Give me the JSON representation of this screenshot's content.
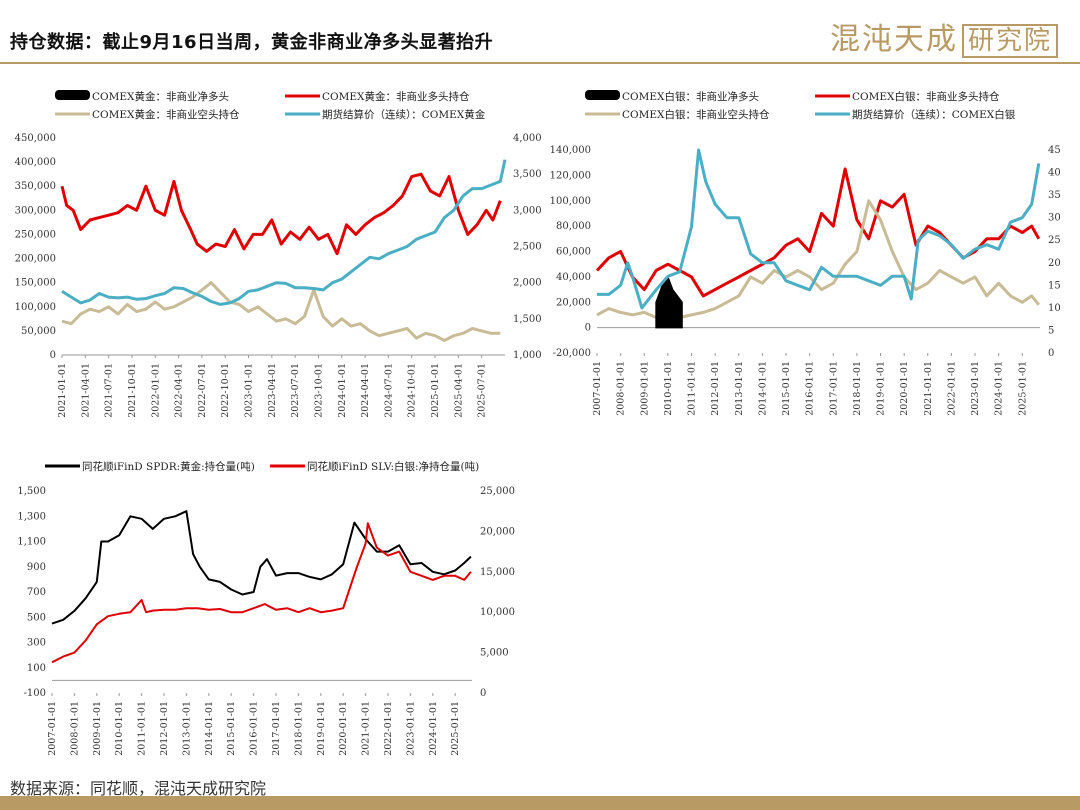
{
  "header": {
    "title": "持仓数据：截止9月16日当周，黄金非商业净多头显著抬升",
    "brand_main": "混沌天成",
    "brand_boxed": "研究院"
  },
  "source": "数据来源：同花顺，混沌天成研究院",
  "colors": {
    "black": "#000000",
    "red": "#e00000",
    "tan": "#c8bb95",
    "blue": "#4aaec4",
    "accent": "#b89a64"
  },
  "chart_data": [
    {
      "type": "line",
      "legend": [
        "COMEX黄金：非商业净多头",
        "COMEX黄金：非商业多头持仓",
        "COMEX黄金：非商业空头持仓",
        "期货结算价（连续）：COMEX黄金"
      ],
      "y_left": {
        "min": 0,
        "max": 450000,
        "ticks": [
          "0",
          "50,000",
          "100,000",
          "150,000",
          "200,000",
          "250,000",
          "300,000",
          "350,000",
          "400,000",
          "450,000"
        ]
      },
      "y_right": {
        "min": 1000,
        "max": 4000,
        "ticks": [
          "1,000",
          "1,500",
          "2,000",
          "2,500",
          "3,000",
          "3,500",
          "4,000"
        ]
      },
      "x_ticks": [
        "2021-01-01",
        "2021-04-01",
        "2021-07-01",
        "2021-10-01",
        "2022-01-01",
        "2022-04-01",
        "2022-07-01",
        "2022-10-01",
        "2023-01-01",
        "2023-04-01",
        "2023-07-01",
        "2023-10-01",
        "2024-01-01",
        "2024-04-01",
        "2024-07-01",
        "2024-10-01",
        "2025-01-01",
        "2025-04-01",
        "2025-07-01"
      ],
      "x_range": [
        2021.0,
        2025.75
      ],
      "series": [
        {
          "name": "COMEX黄金：非商业多头持仓",
          "color": "#e00000",
          "axis": "left",
          "x": [
            2021.0,
            2021.05,
            2021.12,
            2021.2,
            2021.3,
            2021.4,
            2021.5,
            2021.6,
            2021.7,
            2021.8,
            2021.9,
            2022.0,
            2022.1,
            2022.2,
            2022.28,
            2022.38,
            2022.45,
            2022.55,
            2022.65,
            2022.75,
            2022.85,
            2022.95,
            2023.05,
            2023.15,
            2023.25,
            2023.35,
            2023.45,
            2023.55,
            2023.65,
            2023.75,
            2023.85,
            2023.95,
            2024.05,
            2024.15,
            2024.25,
            2024.35,
            2024.45,
            2024.55,
            2024.65,
            2024.75,
            2024.85,
            2024.95,
            2025.05,
            2025.15,
            2025.25,
            2025.35,
            2025.45,
            2025.55,
            2025.62,
            2025.7
          ],
          "y": [
            350000,
            310000,
            300000,
            260000,
            280000,
            285000,
            290000,
            295000,
            310000,
            300000,
            350000,
            300000,
            290000,
            360000,
            300000,
            260000,
            230000,
            215000,
            230000,
            225000,
            260000,
            220000,
            250000,
            250000,
            280000,
            230000,
            255000,
            240000,
            265000,
            240000,
            250000,
            210000,
            270000,
            250000,
            270000,
            285000,
            295000,
            310000,
            330000,
            370000,
            375000,
            340000,
            330000,
            370000,
            300000,
            250000,
            270000,
            300000,
            280000,
            320000
          ]
        },
        {
          "name": "COMEX黄金：非商业空头持仓",
          "color": "#c8bb95",
          "axis": "left",
          "x": [
            2021.0,
            2021.1,
            2021.2,
            2021.3,
            2021.4,
            2021.5,
            2021.6,
            2021.7,
            2021.8,
            2021.9,
            2022.0,
            2022.1,
            2022.2,
            2022.3,
            2022.4,
            2022.5,
            2022.6,
            2022.7,
            2022.8,
            2022.9,
            2023.0,
            2023.1,
            2023.2,
            2023.3,
            2023.4,
            2023.5,
            2023.6,
            2023.7,
            2023.8,
            2023.9,
            2024.0,
            2024.1,
            2024.2,
            2024.3,
            2024.4,
            2024.5,
            2024.6,
            2024.7,
            2024.8,
            2024.9,
            2025.0,
            2025.1,
            2025.2,
            2025.3,
            2025.4,
            2025.5,
            2025.6,
            2025.7
          ],
          "y": [
            70000,
            65000,
            85000,
            95000,
            90000,
            100000,
            85000,
            105000,
            90000,
            95000,
            110000,
            95000,
            100000,
            110000,
            120000,
            135000,
            150000,
            130000,
            110000,
            105000,
            90000,
            100000,
            85000,
            70000,
            75000,
            65000,
            80000,
            135000,
            80000,
            60000,
            75000,
            60000,
            65000,
            50000,
            40000,
            45000,
            50000,
            55000,
            35000,
            45000,
            40000,
            30000,
            40000,
            45000,
            55000,
            50000,
            45000,
            45000
          ]
        },
        {
          "name": "期货结算价（连续）：COMEX黄金",
          "color": "#4aaec4",
          "axis": "right",
          "x": [
            2021.0,
            2021.1,
            2021.2,
            2021.3,
            2021.4,
            2021.5,
            2021.6,
            2021.7,
            2021.8,
            2021.9,
            2022.0,
            2022.1,
            2022.2,
            2022.3,
            2022.4,
            2022.5,
            2022.6,
            2022.7,
            2022.8,
            2022.9,
            2023.0,
            2023.1,
            2023.2,
            2023.3,
            2023.4,
            2023.5,
            2023.6,
            2023.7,
            2023.8,
            2023.9,
            2024.0,
            2024.1,
            2024.2,
            2024.3,
            2024.4,
            2024.5,
            2024.6,
            2024.7,
            2024.8,
            2024.9,
            2025.0,
            2025.1,
            2025.2,
            2025.3,
            2025.4,
            2025.5,
            2025.6,
            2025.7,
            2025.75
          ],
          "y": [
            1880,
            1800,
            1720,
            1760,
            1850,
            1800,
            1790,
            1800,
            1770,
            1780,
            1820,
            1850,
            1930,
            1920,
            1860,
            1810,
            1740,
            1700,
            1720,
            1780,
            1880,
            1900,
            1950,
            2000,
            1990,
            1930,
            1930,
            1920,
            1900,
            2000,
            2050,
            2150,
            2250,
            2350,
            2330,
            2400,
            2450,
            2500,
            2600,
            2650,
            2700,
            2900,
            3000,
            3200,
            3300,
            3300,
            3350,
            3400,
            3700
          ]
        }
      ]
    },
    {
      "type": "line",
      "legend": [
        "COMEX白银：非商业净多头",
        "COMEX白银：非商业多头持仓",
        "COMEX白银：非商业空头持仓",
        "期货结算价（连续）：COMEX白银"
      ],
      "y_left": {
        "min": -20000,
        "max": 140000,
        "ticks": [
          "-20,000",
          "0",
          "20,000",
          "40,000",
          "60,000",
          "80,000",
          "100,000",
          "120,000",
          "140,000"
        ]
      },
      "y_right": {
        "min": 0,
        "max": 45,
        "ticks": [
          "0",
          "5",
          "10",
          "15",
          "20",
          "25",
          "30",
          "35",
          "40",
          "45"
        ]
      },
      "x_ticks": [
        "2007-01-01",
        "2008-01-01",
        "2009-01-01",
        "2010-01-01",
        "2011-01-01",
        "2012-01-01",
        "2013-01-01",
        "2014-01-01",
        "2015-01-01",
        "2016-01-01",
        "2017-01-01",
        "2018-01-01",
        "2019-01-01",
        "2020-01-01",
        "2021-01-01",
        "2022-01-01",
        "2023-01-01",
        "2024-01-01",
        "2025-01-01"
      ],
      "x_range": [
        2007.0,
        2025.75
      ],
      "series": [
        {
          "name": "COMEX白银：非商业多头持仓",
          "color": "#e00000",
          "axis": "left",
          "x": [
            2007.0,
            2007.5,
            2008.0,
            2008.5,
            2009.0,
            2009.5,
            2010.0,
            2010.5,
            2011.0,
            2011.5,
            2012.0,
            2012.5,
            2013.0,
            2013.5,
            2014.0,
            2014.5,
            2015.0,
            2015.5,
            2016.0,
            2016.5,
            2017.0,
            2017.5,
            2018.0,
            2018.5,
            2019.0,
            2019.5,
            2020.0,
            2020.5,
            2021.0,
            2021.5,
            2022.0,
            2022.5,
            2023.0,
            2023.5,
            2024.0,
            2024.5,
            2025.0,
            2025.4,
            2025.7
          ],
          "y": [
            45000,
            55000,
            60000,
            40000,
            30000,
            45000,
            50000,
            45000,
            40000,
            25000,
            30000,
            35000,
            40000,
            45000,
            50000,
            55000,
            65000,
            70000,
            60000,
            90000,
            80000,
            125000,
            85000,
            70000,
            100000,
            95000,
            105000,
            65000,
            80000,
            75000,
            65000,
            55000,
            60000,
            70000,
            70000,
            80000,
            75000,
            80000,
            70000
          ]
        },
        {
          "name": "COMEX白银：非商业空头持仓",
          "color": "#c8bb95",
          "axis": "left",
          "x": [
            2007.0,
            2007.5,
            2008.0,
            2008.5,
            2009.0,
            2009.5,
            2010.0,
            2010.5,
            2011.0,
            2011.5,
            2012.0,
            2012.5,
            2013.0,
            2013.5,
            2014.0,
            2014.5,
            2015.0,
            2015.5,
            2016.0,
            2016.5,
            2017.0,
            2017.5,
            2018.0,
            2018.5,
            2019.0,
            2019.5,
            2020.0,
            2020.5,
            2021.0,
            2021.5,
            2022.0,
            2022.5,
            2023.0,
            2023.5,
            2024.0,
            2024.5,
            2025.0,
            2025.4,
            2025.7
          ],
          "y": [
            10000,
            15000,
            12000,
            10000,
            12000,
            8000,
            10000,
            8000,
            10000,
            12000,
            15000,
            20000,
            25000,
            40000,
            35000,
            45000,
            40000,
            45000,
            40000,
            30000,
            35000,
            50000,
            60000,
            100000,
            85000,
            60000,
            40000,
            30000,
            35000,
            45000,
            40000,
            35000,
            40000,
            25000,
            35000,
            25000,
            20000,
            25000,
            18000
          ]
        },
        {
          "name": "COMEX白银：非商业净多头",
          "color": "#000000",
          "axis": "left",
          "x": [
            2009.5,
            2009.8,
            2010.0,
            2010.2,
            2010.4,
            2010.6
          ],
          "y": [
            20000,
            35000,
            40000,
            30000,
            25000,
            20000
          ]
        },
        {
          "name": "期货结算价（连续）：COMEX白银",
          "color": "#4aaec4",
          "axis": "right",
          "x": [
            2007.0,
            2007.5,
            2008.0,
            2008.3,
            2008.5,
            2008.9,
            2009.5,
            2010.0,
            2010.5,
            2011.0,
            2011.3,
            2011.6,
            2012.0,
            2012.5,
            2013.0,
            2013.5,
            2014.0,
            2014.5,
            2015.0,
            2015.5,
            2016.0,
            2016.5,
            2017.0,
            2017.5,
            2018.0,
            2018.5,
            2019.0,
            2019.5,
            2020.0,
            2020.3,
            2020.6,
            2021.0,
            2021.5,
            2022.0,
            2022.5,
            2023.0,
            2023.5,
            2024.0,
            2024.5,
            2025.0,
            2025.4,
            2025.7
          ],
          "y": [
            13,
            13,
            15,
            20,
            17,
            10,
            14,
            17,
            18,
            28,
            45,
            38,
            33,
            30,
            30,
            22,
            20,
            20,
            16,
            15,
            14,
            19,
            17,
            17,
            17,
            16,
            15,
            17,
            17,
            12,
            25,
            27,
            26,
            24,
            21,
            23,
            24,
            23,
            29,
            30,
            33,
            42
          ]
        }
      ]
    },
    {
      "type": "line",
      "legend": [
        "同花顺iFinD SPDR:黄金:持仓量(吨)",
        "同花顺iFinD SLV:白银:净持仓量(吨)"
      ],
      "y_left": {
        "min": -100,
        "max": 1500,
        "ticks": [
          "-100",
          "100",
          "300",
          "500",
          "700",
          "900",
          "1,100",
          "1,300",
          "1,500"
        ]
      },
      "y_right": {
        "min": 0,
        "max": 25000,
        "ticks": [
          "0",
          "5,000",
          "10,000",
          "15,000",
          "20,000",
          "25,000"
        ]
      },
      "x_ticks": [
        "2007-01-01",
        "2008-01-01",
        "2009-01-01",
        "2010-01-01",
        "2011-01-01",
        "2012-01-01",
        "2013-01-01",
        "2014-01-01",
        "2015-01-01",
        "2016-01-01",
        "2017-01-01",
        "2018-01-01",
        "2019-01-01",
        "2020-01-01",
        "2021-01-01",
        "2022-01-01",
        "2023-01-01",
        "2024-01-01",
        "2025-01-01"
      ],
      "x_range": [
        2007.0,
        2025.75
      ],
      "series": [
        {
          "name": "同花顺iFinD SPDR:黄金:持仓量(吨)",
          "color": "#000000",
          "axis": "left",
          "x": [
            2007.0,
            2007.5,
            2008.0,
            2008.5,
            2009.0,
            2009.2,
            2009.5,
            2010.0,
            2010.5,
            2011.0,
            2011.5,
            2012.0,
            2012.5,
            2013.0,
            2013.3,
            2013.6,
            2014.0,
            2014.5,
            2015.0,
            2015.5,
            2016.0,
            2016.3,
            2016.6,
            2017.0,
            2017.5,
            2018.0,
            2018.5,
            2019.0,
            2019.5,
            2020.0,
            2020.5,
            2021.0,
            2021.5,
            2022.0,
            2022.5,
            2023.0,
            2023.5,
            2024.0,
            2024.5,
            2025.0,
            2025.4,
            2025.7
          ],
          "y": [
            450,
            480,
            550,
            650,
            780,
            1100,
            1100,
            1150,
            1300,
            1280,
            1200,
            1280,
            1300,
            1340,
            1000,
            900,
            800,
            780,
            720,
            680,
            700,
            900,
            960,
            830,
            850,
            850,
            820,
            800,
            840,
            920,
            1250,
            1120,
            1020,
            1020,
            1070,
            920,
            930,
            860,
            840,
            870,
            930,
            980
          ]
        },
        {
          "name": "同花顺iFinD SLV:白银:净持仓量(吨)",
          "color": "#e00000",
          "axis": "right",
          "x": [
            2007.0,
            2007.5,
            2008.0,
            2008.5,
            2009.0,
            2009.5,
            2010.0,
            2010.5,
            2011.0,
            2011.2,
            2011.5,
            2012.0,
            2012.5,
            2013.0,
            2013.5,
            2014.0,
            2014.5,
            2015.0,
            2015.5,
            2016.0,
            2016.5,
            2017.0,
            2017.5,
            2018.0,
            2018.5,
            2019.0,
            2019.5,
            2020.0,
            2020.3,
            2020.6,
            2021.0,
            2021.1,
            2021.5,
            2022.0,
            2022.5,
            2023.0,
            2023.5,
            2024.0,
            2024.5,
            2025.0,
            2025.4,
            2025.7
          ],
          "y": [
            3800,
            4500,
            5000,
            6500,
            8500,
            9500,
            9800,
            10000,
            11500,
            10000,
            10200,
            10300,
            10300,
            10500,
            10500,
            10300,
            10400,
            10000,
            10000,
            10500,
            11000,
            10300,
            10500,
            10000,
            10500,
            10000,
            10200,
            10500,
            13000,
            15500,
            18500,
            21000,
            18000,
            17000,
            17500,
            15000,
            14500,
            14000,
            14500,
            14500,
            14000,
            15000
          ]
        }
      ]
    }
  ]
}
